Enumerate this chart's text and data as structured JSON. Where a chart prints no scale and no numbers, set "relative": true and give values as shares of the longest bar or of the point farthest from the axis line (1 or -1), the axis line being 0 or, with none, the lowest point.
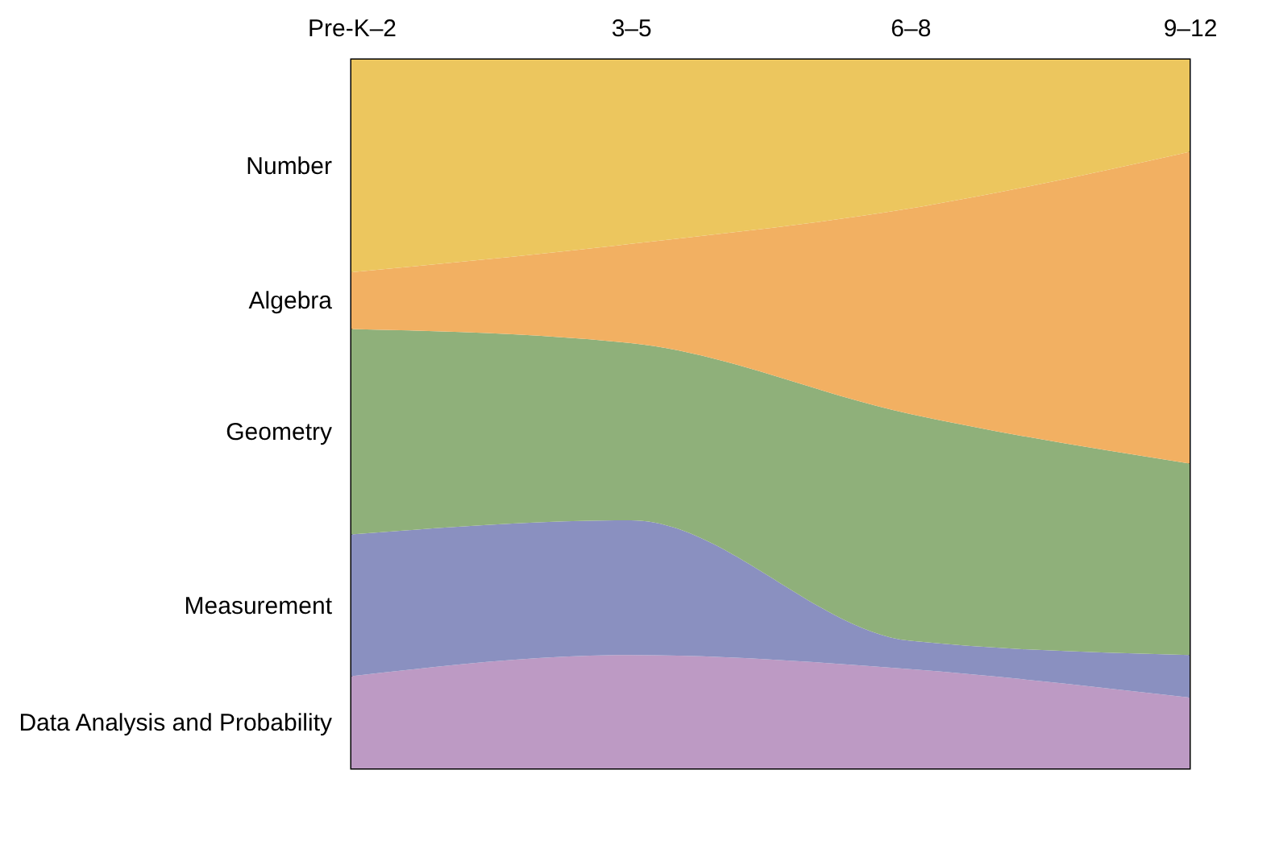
{
  "chart_data": {
    "type": "area",
    "stacked": true,
    "relative": true,
    "categories": [
      "Pre-K–2",
      "3–5",
      "6–8",
      "9–12"
    ],
    "series": [
      {
        "name": "Data Analysis and Probability",
        "color": "#bd9ac4",
        "values": [
          0.13,
          0.16,
          0.14,
          0.1
        ]
      },
      {
        "name": "Measurement",
        "color": "#8a90c0",
        "values": [
          0.2,
          0.19,
          0.04,
          0.06
        ]
      },
      {
        "name": "Geometry",
        "color": "#8fb07a",
        "values": [
          0.29,
          0.25,
          0.32,
          0.27
        ]
      },
      {
        "name": "Algebra",
        "color": "#f2b062",
        "values": [
          0.08,
          0.14,
          0.29,
          0.44
        ]
      },
      {
        "name": "Number",
        "color": "#ecc65e",
        "values": [
          0.3,
          0.26,
          0.21,
          0.13
        ]
      }
    ]
  }
}
